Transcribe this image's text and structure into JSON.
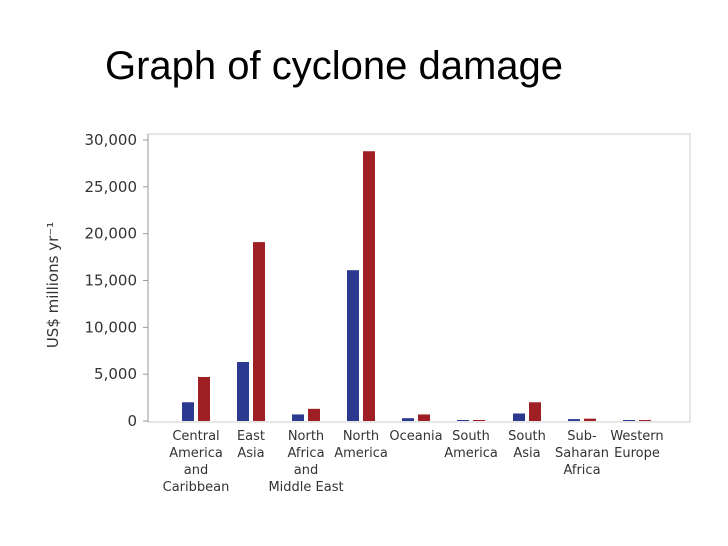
{
  "slide": {
    "title": "Graph of cyclone damage"
  },
  "chart_data": {
    "type": "bar",
    "title": "",
    "xlabel": "",
    "ylabel": "US$ millions yr⁻¹",
    "ylim": [
      0,
      30000
    ],
    "yticks": [
      "0",
      "5,000",
      "10,000",
      "15,000",
      "20,000",
      "25,000",
      "30,000"
    ],
    "ytick_values": [
      0,
      5000,
      10000,
      15000,
      20000,
      25000,
      30000
    ],
    "grid": false,
    "legend": "none",
    "categories": [
      [
        "Central",
        "America",
        "and",
        "Caribbean"
      ],
      [
        "East",
        "Asia"
      ],
      [
        "North",
        "Africa",
        "and",
        "Middle East"
      ],
      [
        "North",
        "America"
      ],
      [
        "Oceania"
      ],
      [
        "South",
        "America"
      ],
      [
        "South",
        "Asia"
      ],
      [
        "Sub-",
        "Saharan",
        "Africa"
      ],
      [
        "Western",
        "Europe"
      ]
    ],
    "series": [
      {
        "color": "#2b3990",
        "values": [
          2000,
          6300,
          700,
          16100,
          300,
          50,
          800,
          200,
          80
        ]
      },
      {
        "color": "#9e1f24",
        "values": [
          4700,
          19100,
          1300,
          28800,
          700,
          80,
          2000,
          250,
          100
        ]
      }
    ]
  }
}
